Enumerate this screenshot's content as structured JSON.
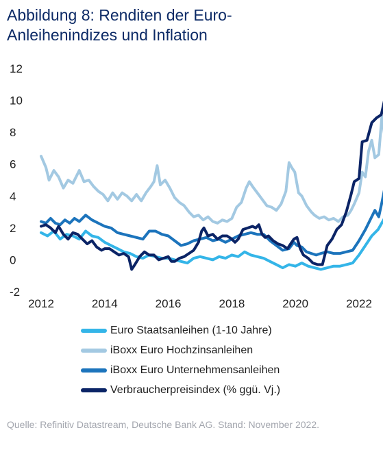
{
  "title": {
    "line1": "Abbildung 8: Renditen der Euro-",
    "line2": "Anleihenindizes und Inflation"
  },
  "source": "Quelle: Refinitiv Datastream, Deutsche Bank AG. Stand: November 2022.",
  "chart_data": {
    "type": "line",
    "title": "Abbildung 8: Renditen der Euro-Anleihenindizes und Inflation",
    "xlabel": "",
    "ylabel": "",
    "xlim": [
      2012,
      2022
    ],
    "ylim": [
      -2,
      12
    ],
    "x_ticks": [
      2012,
      2014,
      2016,
      2018,
      2020,
      2022
    ],
    "y_ticks": [
      -2,
      0,
      2,
      4,
      6,
      8,
      10,
      12
    ],
    "grid": false,
    "legend_position": "bottom",
    "series": [
      {
        "name": "Euro Staatsanleihen (1-10 Jahre)",
        "color": "#34b5e8",
        "points": [
          [
            2012.0,
            1.7
          ],
          [
            2012.2,
            1.5
          ],
          [
            2012.4,
            1.8
          ],
          [
            2012.6,
            1.3
          ],
          [
            2012.8,
            1.6
          ],
          [
            2013.0,
            1.5
          ],
          [
            2013.2,
            1.3
          ],
          [
            2013.4,
            1.8
          ],
          [
            2013.6,
            1.5
          ],
          [
            2013.8,
            1.4
          ],
          [
            2014.0,
            1.1
          ],
          [
            2014.2,
            0.9
          ],
          [
            2014.4,
            0.7
          ],
          [
            2014.6,
            0.5
          ],
          [
            2014.8,
            0.4
          ],
          [
            2015.0,
            0.2
          ],
          [
            2015.2,
            0.1
          ],
          [
            2015.4,
            0.3
          ],
          [
            2015.6,
            0.2
          ],
          [
            2015.8,
            0.1
          ],
          [
            2016.0,
            0.1
          ],
          [
            2016.2,
            0.0
          ],
          [
            2016.4,
            -0.1
          ],
          [
            2016.6,
            -0.2
          ],
          [
            2016.8,
            0.1
          ],
          [
            2017.0,
            0.2
          ],
          [
            2017.2,
            0.1
          ],
          [
            2017.4,
            0.0
          ],
          [
            2017.6,
            0.2
          ],
          [
            2017.8,
            0.1
          ],
          [
            2018.0,
            0.3
          ],
          [
            2018.2,
            0.2
          ],
          [
            2018.4,
            0.5
          ],
          [
            2018.6,
            0.3
          ],
          [
            2018.8,
            0.2
          ],
          [
            2019.0,
            0.1
          ],
          [
            2019.2,
            -0.1
          ],
          [
            2019.4,
            -0.3
          ],
          [
            2019.6,
            -0.5
          ],
          [
            2019.8,
            -0.3
          ],
          [
            2020.0,
            -0.4
          ],
          [
            2020.2,
            -0.2
          ],
          [
            2020.4,
            -0.4
          ],
          [
            2020.6,
            -0.5
          ],
          [
            2020.8,
            -0.6
          ],
          [
            2021.0,
            -0.5
          ],
          [
            2021.2,
            -0.4
          ],
          [
            2021.4,
            -0.4
          ],
          [
            2021.6,
            -0.3
          ],
          [
            2021.8,
            -0.2
          ],
          [
            2022.0,
            0.3
          ],
          [
            2022.2,
            0.9
          ],
          [
            2022.4,
            1.5
          ],
          [
            2022.6,
            1.9
          ],
          [
            2022.8,
            2.6
          ],
          [
            2022.9,
            2.5
          ]
        ]
      },
      {
        "name": "iBoxx Euro Hochzinsanleihen",
        "color": "#a3c9e2",
        "points": [
          [
            2012.0,
            6.5
          ],
          [
            2012.15,
            5.8
          ],
          [
            2012.25,
            5.0
          ],
          [
            2012.4,
            5.6
          ],
          [
            2012.55,
            5.2
          ],
          [
            2012.7,
            4.5
          ],
          [
            2012.85,
            5.0
          ],
          [
            2013.0,
            4.8
          ],
          [
            2013.2,
            5.6
          ],
          [
            2013.35,
            4.9
          ],
          [
            2013.5,
            5.0
          ],
          [
            2013.65,
            4.6
          ],
          [
            2013.8,
            4.3
          ],
          [
            2013.95,
            4.1
          ],
          [
            2014.1,
            3.7
          ],
          [
            2014.25,
            4.2
          ],
          [
            2014.4,
            3.8
          ],
          [
            2014.55,
            4.2
          ],
          [
            2014.7,
            4.0
          ],
          [
            2014.85,
            3.7
          ],
          [
            2015.0,
            4.1
          ],
          [
            2015.15,
            3.7
          ],
          [
            2015.3,
            4.2
          ],
          [
            2015.45,
            4.6
          ],
          [
            2015.55,
            4.9
          ],
          [
            2015.65,
            5.9
          ],
          [
            2015.75,
            4.7
          ],
          [
            2015.9,
            5.0
          ],
          [
            2016.05,
            4.5
          ],
          [
            2016.2,
            3.9
          ],
          [
            2016.35,
            3.6
          ],
          [
            2016.5,
            3.4
          ],
          [
            2016.65,
            3.0
          ],
          [
            2016.8,
            2.7
          ],
          [
            2016.95,
            2.8
          ],
          [
            2017.1,
            2.5
          ],
          [
            2017.25,
            2.7
          ],
          [
            2017.4,
            2.4
          ],
          [
            2017.55,
            2.3
          ],
          [
            2017.7,
            2.5
          ],
          [
            2017.85,
            2.4
          ],
          [
            2018.0,
            2.6
          ],
          [
            2018.15,
            3.3
          ],
          [
            2018.3,
            3.6
          ],
          [
            2018.45,
            4.5
          ],
          [
            2018.55,
            4.9
          ],
          [
            2018.65,
            4.6
          ],
          [
            2018.8,
            4.2
          ],
          [
            2018.95,
            3.8
          ],
          [
            2019.1,
            3.4
          ],
          [
            2019.25,
            3.3
          ],
          [
            2019.4,
            3.1
          ],
          [
            2019.55,
            3.5
          ],
          [
            2019.7,
            4.3
          ],
          [
            2019.8,
            6.1
          ],
          [
            2019.88,
            5.8
          ],
          [
            2019.98,
            5.5
          ],
          [
            2020.1,
            4.2
          ],
          [
            2020.2,
            4.0
          ],
          [
            2020.35,
            3.4
          ],
          [
            2020.5,
            3.0
          ],
          [
            2020.6,
            2.8
          ],
          [
            2020.75,
            2.6
          ],
          [
            2020.9,
            2.7
          ],
          [
            2021.05,
            2.5
          ],
          [
            2021.2,
            2.6
          ],
          [
            2021.35,
            2.4
          ],
          [
            2021.5,
            2.7
          ],
          [
            2021.65,
            2.8
          ],
          [
            2021.75,
            3.1
          ],
          [
            2021.85,
            3.5
          ],
          [
            2022.0,
            4.2
          ],
          [
            2022.1,
            5.5
          ],
          [
            2022.2,
            5.2
          ],
          [
            2022.3,
            6.8
          ],
          [
            2022.4,
            7.5
          ],
          [
            2022.5,
            6.4
          ],
          [
            2022.62,
            6.6
          ],
          [
            2022.72,
            9.0
          ],
          [
            2022.82,
            7.6
          ],
          [
            2022.9,
            7.8
          ]
        ]
      },
      {
        "name": "iBoxx Euro Unternehmensanleihen",
        "color": "#1c74bc",
        "points": [
          [
            2012.0,
            2.4
          ],
          [
            2012.15,
            2.3
          ],
          [
            2012.3,
            2.6
          ],
          [
            2012.45,
            2.3
          ],
          [
            2012.6,
            2.2
          ],
          [
            2012.75,
            2.5
          ],
          [
            2012.9,
            2.3
          ],
          [
            2013.05,
            2.6
          ],
          [
            2013.2,
            2.4
          ],
          [
            2013.4,
            2.8
          ],
          [
            2013.6,
            2.5
          ],
          [
            2013.8,
            2.3
          ],
          [
            2014.0,
            2.1
          ],
          [
            2014.2,
            2.0
          ],
          [
            2014.4,
            1.7
          ],
          [
            2014.6,
            1.6
          ],
          [
            2014.8,
            1.5
          ],
          [
            2015.0,
            1.4
          ],
          [
            2015.2,
            1.3
          ],
          [
            2015.4,
            1.8
          ],
          [
            2015.6,
            1.8
          ],
          [
            2015.8,
            1.6
          ],
          [
            2016.0,
            1.5
          ],
          [
            2016.2,
            1.2
          ],
          [
            2016.4,
            0.9
          ],
          [
            2016.6,
            1.0
          ],
          [
            2016.8,
            1.2
          ],
          [
            2017.0,
            1.3
          ],
          [
            2017.2,
            1.4
          ],
          [
            2017.4,
            1.2
          ],
          [
            2017.6,
            1.3
          ],
          [
            2017.8,
            1.1
          ],
          [
            2018.0,
            1.3
          ],
          [
            2018.2,
            1.5
          ],
          [
            2018.4,
            1.6
          ],
          [
            2018.6,
            1.7
          ],
          [
            2018.8,
            1.6
          ],
          [
            2019.0,
            1.6
          ],
          [
            2019.2,
            1.2
          ],
          [
            2019.4,
            0.9
          ],
          [
            2019.6,
            0.6
          ],
          [
            2019.8,
            0.7
          ],
          [
            2019.95,
            1.1
          ],
          [
            2020.05,
            0.9
          ],
          [
            2020.2,
            0.8
          ],
          [
            2020.35,
            0.5
          ],
          [
            2020.5,
            0.4
          ],
          [
            2020.65,
            0.3
          ],
          [
            2020.8,
            0.4
          ],
          [
            2021.0,
            0.5
          ],
          [
            2021.2,
            0.4
          ],
          [
            2021.4,
            0.4
          ],
          [
            2021.6,
            0.5
          ],
          [
            2021.8,
            0.6
          ],
          [
            2022.0,
            1.2
          ],
          [
            2022.2,
            1.9
          ],
          [
            2022.35,
            2.5
          ],
          [
            2022.5,
            3.1
          ],
          [
            2022.62,
            2.7
          ],
          [
            2022.72,
            3.6
          ],
          [
            2022.8,
            4.4
          ],
          [
            2022.9,
            4.1
          ]
        ]
      },
      {
        "name": "Verbraucherpreisindex (% ggü. Vj.)",
        "color": "#0b2466",
        "points": [
          [
            2012.0,
            2.1
          ],
          [
            2012.15,
            2.2
          ],
          [
            2012.3,
            2.0
          ],
          [
            2012.45,
            1.7
          ],
          [
            2012.55,
            2.1
          ],
          [
            2012.7,
            1.6
          ],
          [
            2012.85,
            1.3
          ],
          [
            2013.0,
            1.7
          ],
          [
            2013.15,
            1.6
          ],
          [
            2013.3,
            1.3
          ],
          [
            2013.45,
            1.0
          ],
          [
            2013.6,
            1.2
          ],
          [
            2013.75,
            0.8
          ],
          [
            2013.9,
            0.6
          ],
          [
            2014.0,
            0.7
          ],
          [
            2014.15,
            0.7
          ],
          [
            2014.3,
            0.5
          ],
          [
            2014.45,
            0.3
          ],
          [
            2014.6,
            0.4
          ],
          [
            2014.75,
            0.2
          ],
          [
            2014.85,
            -0.6
          ],
          [
            2014.95,
            -0.3
          ],
          [
            2015.1,
            0.2
          ],
          [
            2015.25,
            0.5
          ],
          [
            2015.4,
            0.3
          ],
          [
            2015.55,
            0.3
          ],
          [
            2015.7,
            0.0
          ],
          [
            2015.85,
            0.1
          ],
          [
            2016.0,
            0.2
          ],
          [
            2016.1,
            -0.1
          ],
          [
            2016.2,
            -0.1
          ],
          [
            2016.35,
            0.1
          ],
          [
            2016.5,
            0.2
          ],
          [
            2016.65,
            0.4
          ],
          [
            2016.8,
            0.6
          ],
          [
            2016.95,
            1.1
          ],
          [
            2017.05,
            1.8
          ],
          [
            2017.12,
            2.0
          ],
          [
            2017.25,
            1.5
          ],
          [
            2017.4,
            1.6
          ],
          [
            2017.55,
            1.3
          ],
          [
            2017.7,
            1.5
          ],
          [
            2017.85,
            1.5
          ],
          [
            2018.0,
            1.3
          ],
          [
            2018.1,
            1.1
          ],
          [
            2018.2,
            1.3
          ],
          [
            2018.35,
            1.9
          ],
          [
            2018.5,
            2.0
          ],
          [
            2018.65,
            2.1
          ],
          [
            2018.75,
            2.0
          ],
          [
            2018.85,
            2.2
          ],
          [
            2018.95,
            1.6
          ],
          [
            2019.05,
            1.4
          ],
          [
            2019.15,
            1.5
          ],
          [
            2019.3,
            1.2
          ],
          [
            2019.45,
            1.0
          ],
          [
            2019.6,
            0.9
          ],
          [
            2019.75,
            0.7
          ],
          [
            2019.85,
            1.0
          ],
          [
            2019.95,
            1.3
          ],
          [
            2020.05,
            1.4
          ],
          [
            2020.15,
            0.7
          ],
          [
            2020.25,
            0.3
          ],
          [
            2020.4,
            0.1
          ],
          [
            2020.55,
            -0.2
          ],
          [
            2020.7,
            -0.3
          ],
          [
            2020.85,
            -0.3
          ],
          [
            2021.0,
            0.9
          ],
          [
            2021.15,
            1.3
          ],
          [
            2021.3,
            1.9
          ],
          [
            2021.45,
            2.2
          ],
          [
            2021.6,
            3.0
          ],
          [
            2021.75,
            4.1
          ],
          [
            2021.85,
            4.9
          ],
          [
            2022.0,
            5.1
          ],
          [
            2022.1,
            7.4
          ],
          [
            2022.25,
            7.5
          ],
          [
            2022.4,
            8.6
          ],
          [
            2022.55,
            8.9
          ],
          [
            2022.7,
            9.1
          ],
          [
            2022.8,
            10.0
          ],
          [
            2022.9,
            10.6
          ]
        ]
      }
    ]
  }
}
